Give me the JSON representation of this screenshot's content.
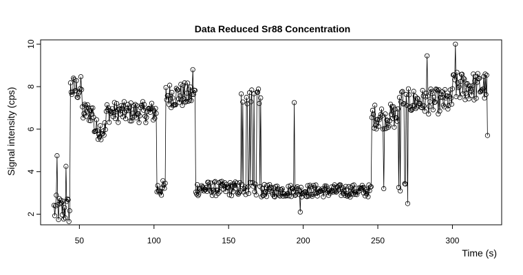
{
  "chart_data": {
    "type": "line",
    "title": "Data Reduced Sr88 Concentration",
    "xlabel": "Time (s)",
    "ylabel": "Signal intensity (cps)",
    "xlim": [
      24,
      333
    ],
    "ylim": [
      1.5,
      10.2
    ],
    "x_ticks": [
      50,
      100,
      150,
      200,
      250,
      300
    ],
    "y_ticks": [
      2,
      4,
      6,
      8,
      10
    ],
    "markers": "open-circle",
    "line_color": "#000000",
    "segments": [
      {
        "t0": 33,
        "t1": 44,
        "base": 2.2,
        "noise": 0.7
      },
      {
        "t0": 44,
        "t1": 52,
        "base": 7.9,
        "noise": 0.6
      },
      {
        "t0": 52,
        "t1": 60,
        "base": 6.8,
        "noise": 0.5
      },
      {
        "t0": 60,
        "t1": 68,
        "base": 6.0,
        "noise": 0.5
      },
      {
        "t0": 68,
        "t1": 102,
        "base": 6.8,
        "noise": 0.5
      },
      {
        "t0": 102,
        "t1": 108,
        "base": 3.2,
        "noise": 0.4
      },
      {
        "t0": 108,
        "t1": 128,
        "base": 7.6,
        "noise": 0.6
      },
      {
        "t0": 128,
        "t1": 158,
        "base": 3.2,
        "noise": 0.35
      },
      {
        "t0": 158,
        "t1": 172,
        "base": 5.5,
        "noise": 2.2
      },
      {
        "t0": 172,
        "t1": 246,
        "base": 3.1,
        "noise": 0.3
      },
      {
        "t0": 246,
        "t1": 264,
        "base": 6.6,
        "noise": 0.6
      },
      {
        "t0": 264,
        "t1": 270,
        "base": 4.0,
        "noise": 1.6
      },
      {
        "t0": 270,
        "t1": 300,
        "base": 7.3,
        "noise": 0.6
      },
      {
        "t0": 300,
        "t1": 324,
        "base": 8.0,
        "noise": 0.7
      }
    ],
    "step": 0.5,
    "spikes": [
      [
        35,
        4.75
      ],
      [
        41,
        4.25
      ],
      [
        194,
        7.25
      ],
      [
        198,
        2.1
      ],
      [
        302,
        10.0
      ],
      [
        283,
        9.45
      ],
      [
        324,
        5.7
      ],
      [
        126,
        8.8
      ],
      [
        270,
        2.5
      ],
      [
        254,
        3.2
      ]
    ]
  }
}
